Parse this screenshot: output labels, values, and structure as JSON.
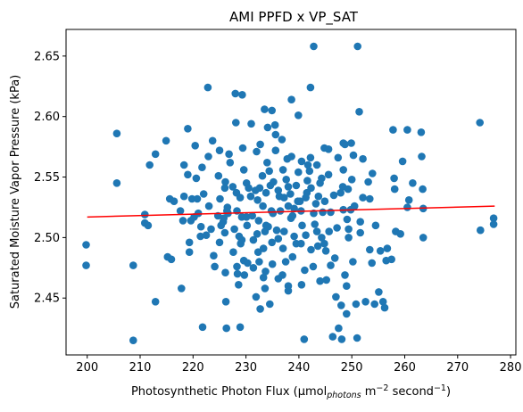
{
  "chart_data": {
    "type": "scatter",
    "title": "AMI PPFD x VP_SAT",
    "xlabel_parts": {
      "pre": "Photosynthetic Photon Flux (μmol",
      "sub": "photons",
      "mid": " m",
      "sup1": "−2",
      "post1": " second",
      "sup2": "−1",
      "post2": ")"
    },
    "ylabel": "Saturated Moisture Vapor Pressure (kPa)",
    "xlim": [
      196,
      281
    ],
    "ylim": [
      2.403,
      2.672
    ],
    "xticks": [
      200,
      210,
      220,
      230,
      240,
      250,
      260,
      270,
      280
    ],
    "yticks": [
      2.45,
      2.5,
      2.55,
      2.6,
      2.65
    ],
    "grid": false,
    "colors": {
      "points": "#1f77b4",
      "trend": "#ff0000"
    },
    "trendline": {
      "x": [
        200,
        277
      ],
      "y": [
        2.517,
        2.526
      ]
    },
    "points": [
      [
        199.8,
        2.494
      ],
      [
        199.8,
        2.477
      ],
      [
        205.6,
        2.586
      ],
      [
        205.6,
        2.545
      ],
      [
        208.7,
        2.477
      ],
      [
        208.7,
        2.415
      ],
      [
        210.9,
        2.519
      ],
      [
        210.9,
        2.512
      ],
      [
        211.5,
        2.51
      ],
      [
        211.8,
        2.56
      ],
      [
        212.9,
        2.569
      ],
      [
        212.9,
        2.447
      ],
      [
        214.9,
        2.58
      ],
      [
        215.2,
        2.484
      ],
      [
        215.6,
        2.532
      ],
      [
        215.9,
        2.482
      ],
      [
        216.4,
        2.53
      ],
      [
        217.6,
        2.522
      ],
      [
        217.8,
        2.458
      ],
      [
        218.1,
        2.514
      ],
      [
        218.3,
        2.56
      ],
      [
        218.3,
        2.534
      ],
      [
        219.0,
        2.59
      ],
      [
        219.0,
        2.552
      ],
      [
        219.3,
        2.496
      ],
      [
        219.3,
        2.488
      ],
      [
        219.6,
        2.514
      ],
      [
        219.8,
        2.532
      ],
      [
        220.2,
        2.517
      ],
      [
        220.4,
        2.576
      ],
      [
        220.6,
        2.549
      ],
      [
        220.8,
        2.532
      ],
      [
        221.0,
        2.52
      ],
      [
        221.4,
        2.501
      ],
      [
        221.5,
        2.509
      ],
      [
        221.7,
        2.558
      ],
      [
        221.8,
        2.426
      ],
      [
        222.0,
        2.536
      ],
      [
        222.5,
        2.502
      ],
      [
        222.8,
        2.624
      ],
      [
        222.9,
        2.567
      ],
      [
        223.0,
        2.526
      ],
      [
        223.4,
        2.507
      ],
      [
        223.7,
        2.58
      ],
      [
        223.9,
        2.485
      ],
      [
        224.1,
        2.476
      ],
      [
        224.7,
        2.518
      ],
      [
        224.8,
        2.551
      ],
      [
        225.0,
        2.496
      ],
      [
        225.0,
        2.572
      ],
      [
        225.1,
        2.532
      ],
      [
        225.3,
        2.51
      ],
      [
        225.7,
        2.513
      ],
      [
        225.8,
        2.516
      ],
      [
        226.0,
        2.541
      ],
      [
        226.0,
        2.504
      ],
      [
        226.1,
        2.546
      ],
      [
        226.1,
        2.471
      ],
      [
        226.2,
        2.447
      ],
      [
        226.3,
        2.425
      ],
      [
        226.4,
        2.522
      ],
      [
        226.5,
        2.525
      ],
      [
        226.6,
        2.52
      ],
      [
        226.8,
        2.569
      ],
      [
        227.0,
        2.562
      ],
      [
        227.5,
        2.542
      ],
      [
        227.6,
        2.488
      ],
      [
        227.8,
        2.507
      ],
      [
        228.0,
        2.619
      ],
      [
        228.1,
        2.595
      ],
      [
        228.2,
        2.537
      ],
      [
        228.3,
        2.522
      ],
      [
        228.3,
        2.476
      ],
      [
        228.4,
        2.47
      ],
      [
        228.6,
        2.461
      ],
      [
        228.7,
        2.501
      ],
      [
        228.9,
        2.533
      ],
      [
        228.9,
        2.426
      ],
      [
        229.0,
        2.495
      ],
      [
        229.2,
        2.517
      ],
      [
        229.2,
        2.498
      ],
      [
        229.3,
        2.618
      ],
      [
        229.4,
        2.574
      ],
      [
        229.6,
        2.556
      ],
      [
        229.6,
        2.481
      ],
      [
        229.7,
        2.469
      ],
      [
        230.1,
        2.545
      ],
      [
        230.1,
        2.517
      ],
      [
        230.2,
        2.51
      ],
      [
        230.3,
        2.479
      ],
      [
        230.5,
        2.541
      ],
      [
        230.9,
        2.534
      ],
      [
        231.0,
        2.594
      ],
      [
        231.2,
        2.518
      ],
      [
        231.4,
        2.498
      ],
      [
        231.4,
        2.475
      ],
      [
        231.8,
        2.539
      ],
      [
        231.9,
        2.451
      ],
      [
        232.0,
        2.571
      ],
      [
        232.1,
        2.503
      ],
      [
        232.2,
        2.531
      ],
      [
        232.3,
        2.488
      ],
      [
        232.4,
        2.514
      ],
      [
        232.5,
        2.48
      ],
      [
        232.6,
        2.541
      ],
      [
        232.7,
        2.577
      ],
      [
        232.7,
        2.441
      ],
      [
        233.1,
        2.551
      ],
      [
        233.2,
        2.526
      ],
      [
        233.3,
        2.491
      ],
      [
        233.3,
        2.467
      ],
      [
        233.5,
        2.606
      ],
      [
        233.6,
        2.505
      ],
      [
        233.6,
        2.458
      ],
      [
        233.7,
        2.472
      ],
      [
        233.8,
        2.537
      ],
      [
        233.8,
        2.51
      ],
      [
        234.0,
        2.562
      ],
      [
        234.1,
        2.591
      ],
      [
        234.2,
        2.509
      ],
      [
        234.4,
        2.555
      ],
      [
        234.5,
        2.445
      ],
      [
        234.6,
        2.543
      ],
      [
        234.8,
        2.522
      ],
      [
        234.9,
        2.605
      ],
      [
        234.9,
        2.496
      ],
      [
        235.0,
        2.478
      ],
      [
        235.1,
        2.52
      ],
      [
        235.2,
        2.546
      ],
      [
        235.5,
        2.593
      ],
      [
        235.6,
        2.585
      ],
      [
        235.6,
        2.572
      ],
      [
        235.8,
        2.506
      ],
      [
        236.1,
        2.539
      ],
      [
        236.1,
        2.499
      ],
      [
        236.1,
        2.466
      ],
      [
        236.3,
        2.534
      ],
      [
        236.5,
        2.522
      ],
      [
        236.8,
        2.581
      ],
      [
        236.9,
        2.469
      ],
      [
        237.0,
        2.556
      ],
      [
        237.0,
        2.491
      ],
      [
        237.2,
        2.533
      ],
      [
        237.2,
        2.505
      ],
      [
        237.5,
        2.48
      ],
      [
        237.6,
        2.548
      ],
      [
        237.8,
        2.565
      ],
      [
        238.0,
        2.542
      ],
      [
        238.0,
        2.526
      ],
      [
        238.0,
        2.46
      ],
      [
        238.0,
        2.456
      ],
      [
        238.4,
        2.536
      ],
      [
        238.5,
        2.516
      ],
      [
        238.6,
        2.614
      ],
      [
        238.6,
        2.567
      ],
      [
        238.8,
        2.518
      ],
      [
        238.8,
        2.484
      ],
      [
        239.1,
        2.524
      ],
      [
        239.1,
        2.501
      ],
      [
        239.5,
        2.543
      ],
      [
        239.5,
        2.495
      ],
      [
        239.8,
        2.53
      ],
      [
        239.9,
        2.601
      ],
      [
        239.9,
        2.554
      ],
      [
        240.2,
        2.53
      ],
      [
        240.4,
        2.522
      ],
      [
        240.4,
        2.495
      ],
      [
        240.5,
        2.563
      ],
      [
        240.5,
        2.461
      ],
      [
        240.6,
        2.51
      ],
      [
        241.0,
        2.416
      ],
      [
        241.1,
        2.473
      ],
      [
        241.3,
        2.533
      ],
      [
        241.3,
        2.502
      ],
      [
        241.5,
        2.537
      ],
      [
        241.6,
        2.547
      ],
      [
        241.7,
        2.56
      ],
      [
        242.0,
        2.555
      ],
      [
        242.2,
        2.566
      ],
      [
        242.2,
        2.624
      ],
      [
        242.3,
        2.541
      ],
      [
        242.3,
        2.49
      ],
      [
        242.7,
        2.476
      ],
      [
        242.8,
        2.52
      ],
      [
        242.8,
        2.658
      ],
      [
        243.0,
        2.511
      ],
      [
        243.2,
        2.528
      ],
      [
        243.4,
        2.56
      ],
      [
        243.4,
        2.505
      ],
      [
        243.6,
        2.493
      ],
      [
        243.7,
        2.534
      ],
      [
        244.0,
        2.545
      ],
      [
        244.0,
        2.464
      ],
      [
        244.3,
        2.549
      ],
      [
        244.3,
        2.5
      ],
      [
        244.5,
        2.521
      ],
      [
        244.8,
        2.574
      ],
      [
        244.8,
        2.495
      ],
      [
        244.9,
        2.53
      ],
      [
        245.1,
        2.489
      ],
      [
        245.2,
        2.465
      ],
      [
        245.6,
        2.573
      ],
      [
        245.6,
        2.552
      ],
      [
        245.7,
        2.505
      ],
      [
        246.0,
        2.521
      ],
      [
        246.0,
        2.477
      ],
      [
        246.4,
        2.418
      ],
      [
        246.6,
        2.535
      ],
      [
        246.8,
        2.483
      ],
      [
        247.0,
        2.451
      ],
      [
        247.2,
        2.508
      ],
      [
        247.4,
        2.566
      ],
      [
        247.5,
        2.425
      ],
      [
        247.9,
        2.537
      ],
      [
        248.0,
        2.444
      ],
      [
        248.1,
        2.416
      ],
      [
        248.3,
        2.542
      ],
      [
        248.4,
        2.578
      ],
      [
        248.4,
        2.556
      ],
      [
        248.4,
        2.523
      ],
      [
        248.7,
        2.577
      ],
      [
        248.7,
        2.469
      ],
      [
        249.0,
        2.46
      ],
      [
        249.0,
        2.437
      ],
      [
        249.1,
        2.515
      ],
      [
        249.3,
        2.54
      ],
      [
        249.4,
        2.507
      ],
      [
        249.4,
        2.5
      ],
      [
        249.8,
        2.523
      ],
      [
        249.9,
        2.578
      ],
      [
        250.0,
        2.548
      ],
      [
        250.2,
        2.48
      ],
      [
        250.3,
        2.568
      ],
      [
        250.5,
        2.526
      ],
      [
        250.8,
        2.445
      ],
      [
        251.0,
        2.417
      ],
      [
        251.1,
        2.658
      ],
      [
        251.4,
        2.604
      ],
      [
        251.6,
        2.513
      ],
      [
        251.6,
        2.504
      ],
      [
        252.1,
        2.565
      ],
      [
        252.1,
        2.533
      ],
      [
        252.6,
        2.447
      ],
      [
        253.1,
        2.546
      ],
      [
        253.4,
        2.532
      ],
      [
        253.4,
        2.49
      ],
      [
        253.8,
        2.479
      ],
      [
        253.9,
        2.553
      ],
      [
        254.3,
        2.445
      ],
      [
        254.5,
        2.51
      ],
      [
        255.1,
        2.455
      ],
      [
        255.4,
        2.489
      ],
      [
        255.9,
        2.447
      ],
      [
        256.2,
        2.442
      ],
      [
        256.5,
        2.481
      ],
      [
        256.7,
        2.491
      ],
      [
        257.5,
        2.482
      ],
      [
        257.8,
        2.589
      ],
      [
        258.0,
        2.549
      ],
      [
        258.1,
        2.54
      ],
      [
        258.3,
        2.505
      ],
      [
        259.2,
        2.503
      ],
      [
        259.6,
        2.563
      ],
      [
        260.5,
        2.589
      ],
      [
        260.5,
        2.525
      ],
      [
        260.8,
        2.531
      ],
      [
        261.5,
        2.545
      ],
      [
        263.1,
        2.587
      ],
      [
        263.2,
        2.567
      ],
      [
        263.4,
        2.54
      ],
      [
        263.5,
        2.524
      ],
      [
        263.5,
        2.5
      ],
      [
        274.2,
        2.595
      ],
      [
        274.3,
        2.506
      ],
      [
        276.8,
        2.516
      ],
      [
        276.8,
        2.511
      ]
    ]
  }
}
